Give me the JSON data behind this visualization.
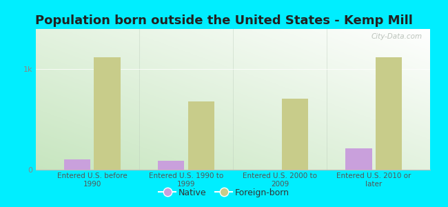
{
  "title": "Population born outside the United States - Kemp Mill",
  "categories": [
    "Entered U.S. before\n1990",
    "Entered U.S. 1990 to\n1999",
    "Entered U.S. 2000 to\n2009",
    "Entered U.S. 2010 or\nlater"
  ],
  "native_values": [
    100,
    90,
    0,
    210
  ],
  "foreign_values": [
    1120,
    680,
    710,
    1120
  ],
  "native_color": "#c9a0dc",
  "foreign_color": "#c8cc8a",
  "bar_width": 0.28,
  "ylim": [
    0,
    1400
  ],
  "yticks": [
    0,
    1000
  ],
  "ytick_labels": [
    "0",
    "1k"
  ],
  "background_top_right": "#ffffff",
  "background_bottom_left": "#c8e6c0",
  "outer_background": "#00eeff",
  "title_fontsize": 13,
  "title_color": "#222222",
  "watermark": "City-Data.com",
  "legend_native": "Native",
  "legend_foreign": "Foreign-born",
  "xtick_color": "#555555",
  "ytick_color": "#888888"
}
